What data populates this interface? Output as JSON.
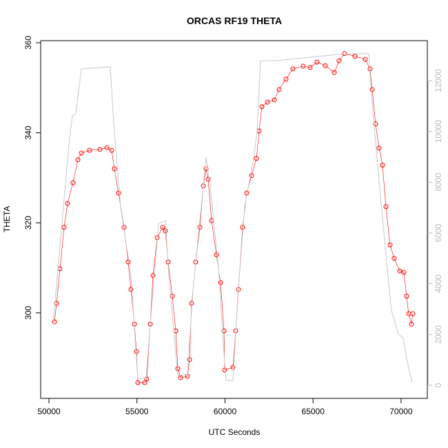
{
  "chart_data": {
    "type": "scatter",
    "title": "ORCAS RF19 THETA",
    "x_label": "UTC Seconds",
    "y_label": "THETA",
    "xlim": [
      49530,
      71490
    ],
    "xticks": [
      50000,
      55000,
      60000,
      65000,
      70000
    ],
    "ylim": [
      281.0,
      360.46
    ],
    "yticks": [
      300,
      320,
      340,
      360
    ],
    "y2lim": [
      -516,
      13575
    ],
    "y2ticks": [
      0,
      2000,
      4000,
      6000,
      8000,
      10000,
      12000
    ],
    "series": [
      {
        "color": "#ff0000",
        "x": [
          50313,
          50430,
          50626,
          50860,
          51056,
          51370,
          51643,
          51839,
          52309,
          52896,
          53287,
          53562,
          53718,
          53953,
          54266,
          54501,
          54657,
          54853,
          54970,
          55049,
          55440,
          55557,
          55753,
          55910,
          56145,
          56458,
          56614,
          56770,
          57005,
          57201,
          57318,
          57475,
          57866,
          57984,
          58101,
          58336,
          58571,
          58767,
          58924,
          59041,
          59237,
          59511,
          59746,
          59941,
          59980,
          60450,
          60607,
          60763,
          60998,
          61233,
          61507,
          61781,
          61937,
          62094,
          62407,
          62798,
          63072,
          63464,
          63855,
          64442,
          64834,
          65225,
          65695,
          66204,
          66478,
          66791,
          67378,
          67965,
          68239,
          68357,
          68552,
          68748,
          68944,
          69139,
          69374,
          69609,
          69922,
          70157,
          70313,
          70431,
          70587,
          70665
        ],
        "values": [
          298.0,
          302.1,
          309.8,
          319.0,
          324.3,
          328.9,
          334.0,
          335.5,
          336.1,
          336.3,
          336.7,
          336.1,
          332.0,
          326.6,
          319.0,
          311.3,
          305.2,
          297.5,
          291.4,
          284.5,
          284.5,
          285.3,
          297.5,
          308.3,
          316.7,
          319.0,
          318.2,
          311.3,
          303.7,
          296.0,
          287.6,
          285.6,
          285.9,
          289.6,
          302.1,
          311.3,
          319.0,
          328.2,
          332.0,
          329.7,
          320.5,
          312.9,
          306.7,
          296.0,
          287.3,
          287.9,
          296.0,
          305.2,
          319.0,
          326.6,
          330.5,
          334.3,
          340.4,
          345.8,
          346.8,
          347.3,
          349.6,
          351.9,
          354.2,
          354.8,
          354.5,
          355.7,
          354.9,
          353.4,
          356.0,
          357.6,
          357.0,
          356.3,
          354.2,
          349.6,
          342.0,
          336.6,
          332.8,
          323.6,
          315.1,
          312.1,
          309.3,
          309.0,
          303.7,
          299.8,
          297.5,
          299.8
        ]
      },
      {
        "color": "#c8c8c8",
        "axis": "y2",
        "x": [
          50235,
          51135,
          51330,
          51526,
          51839,
          53483,
          53679,
          54070,
          54657,
          55049,
          55518,
          55910,
          56223,
          56614,
          56810,
          57318,
          57866,
          58179,
          58649,
          58924,
          59159,
          59668,
          59863,
          60059,
          60450,
          60724,
          61116,
          61624,
          61820,
          62016,
          62877,
          66791,
          68161,
          68357,
          68670,
          69139,
          69452,
          69844,
          70118,
          70313,
          70626
        ],
        "values": [
          2417,
          9476,
          10616,
          10698,
          12463,
          12544,
          10290,
          7032,
          4317,
          244,
          299,
          3774,
          6353,
          6489,
          4317,
          380,
          434,
          3774,
          7032,
          8987,
          7847,
          4317,
          2009,
          190,
          190,
          3503,
          7032,
          8933,
          10019,
          12788,
          12788,
          13060,
          13060,
          11105,
          8661,
          5132,
          2960,
          2009,
          1874,
          1059,
          109
        ]
      }
    ]
  }
}
